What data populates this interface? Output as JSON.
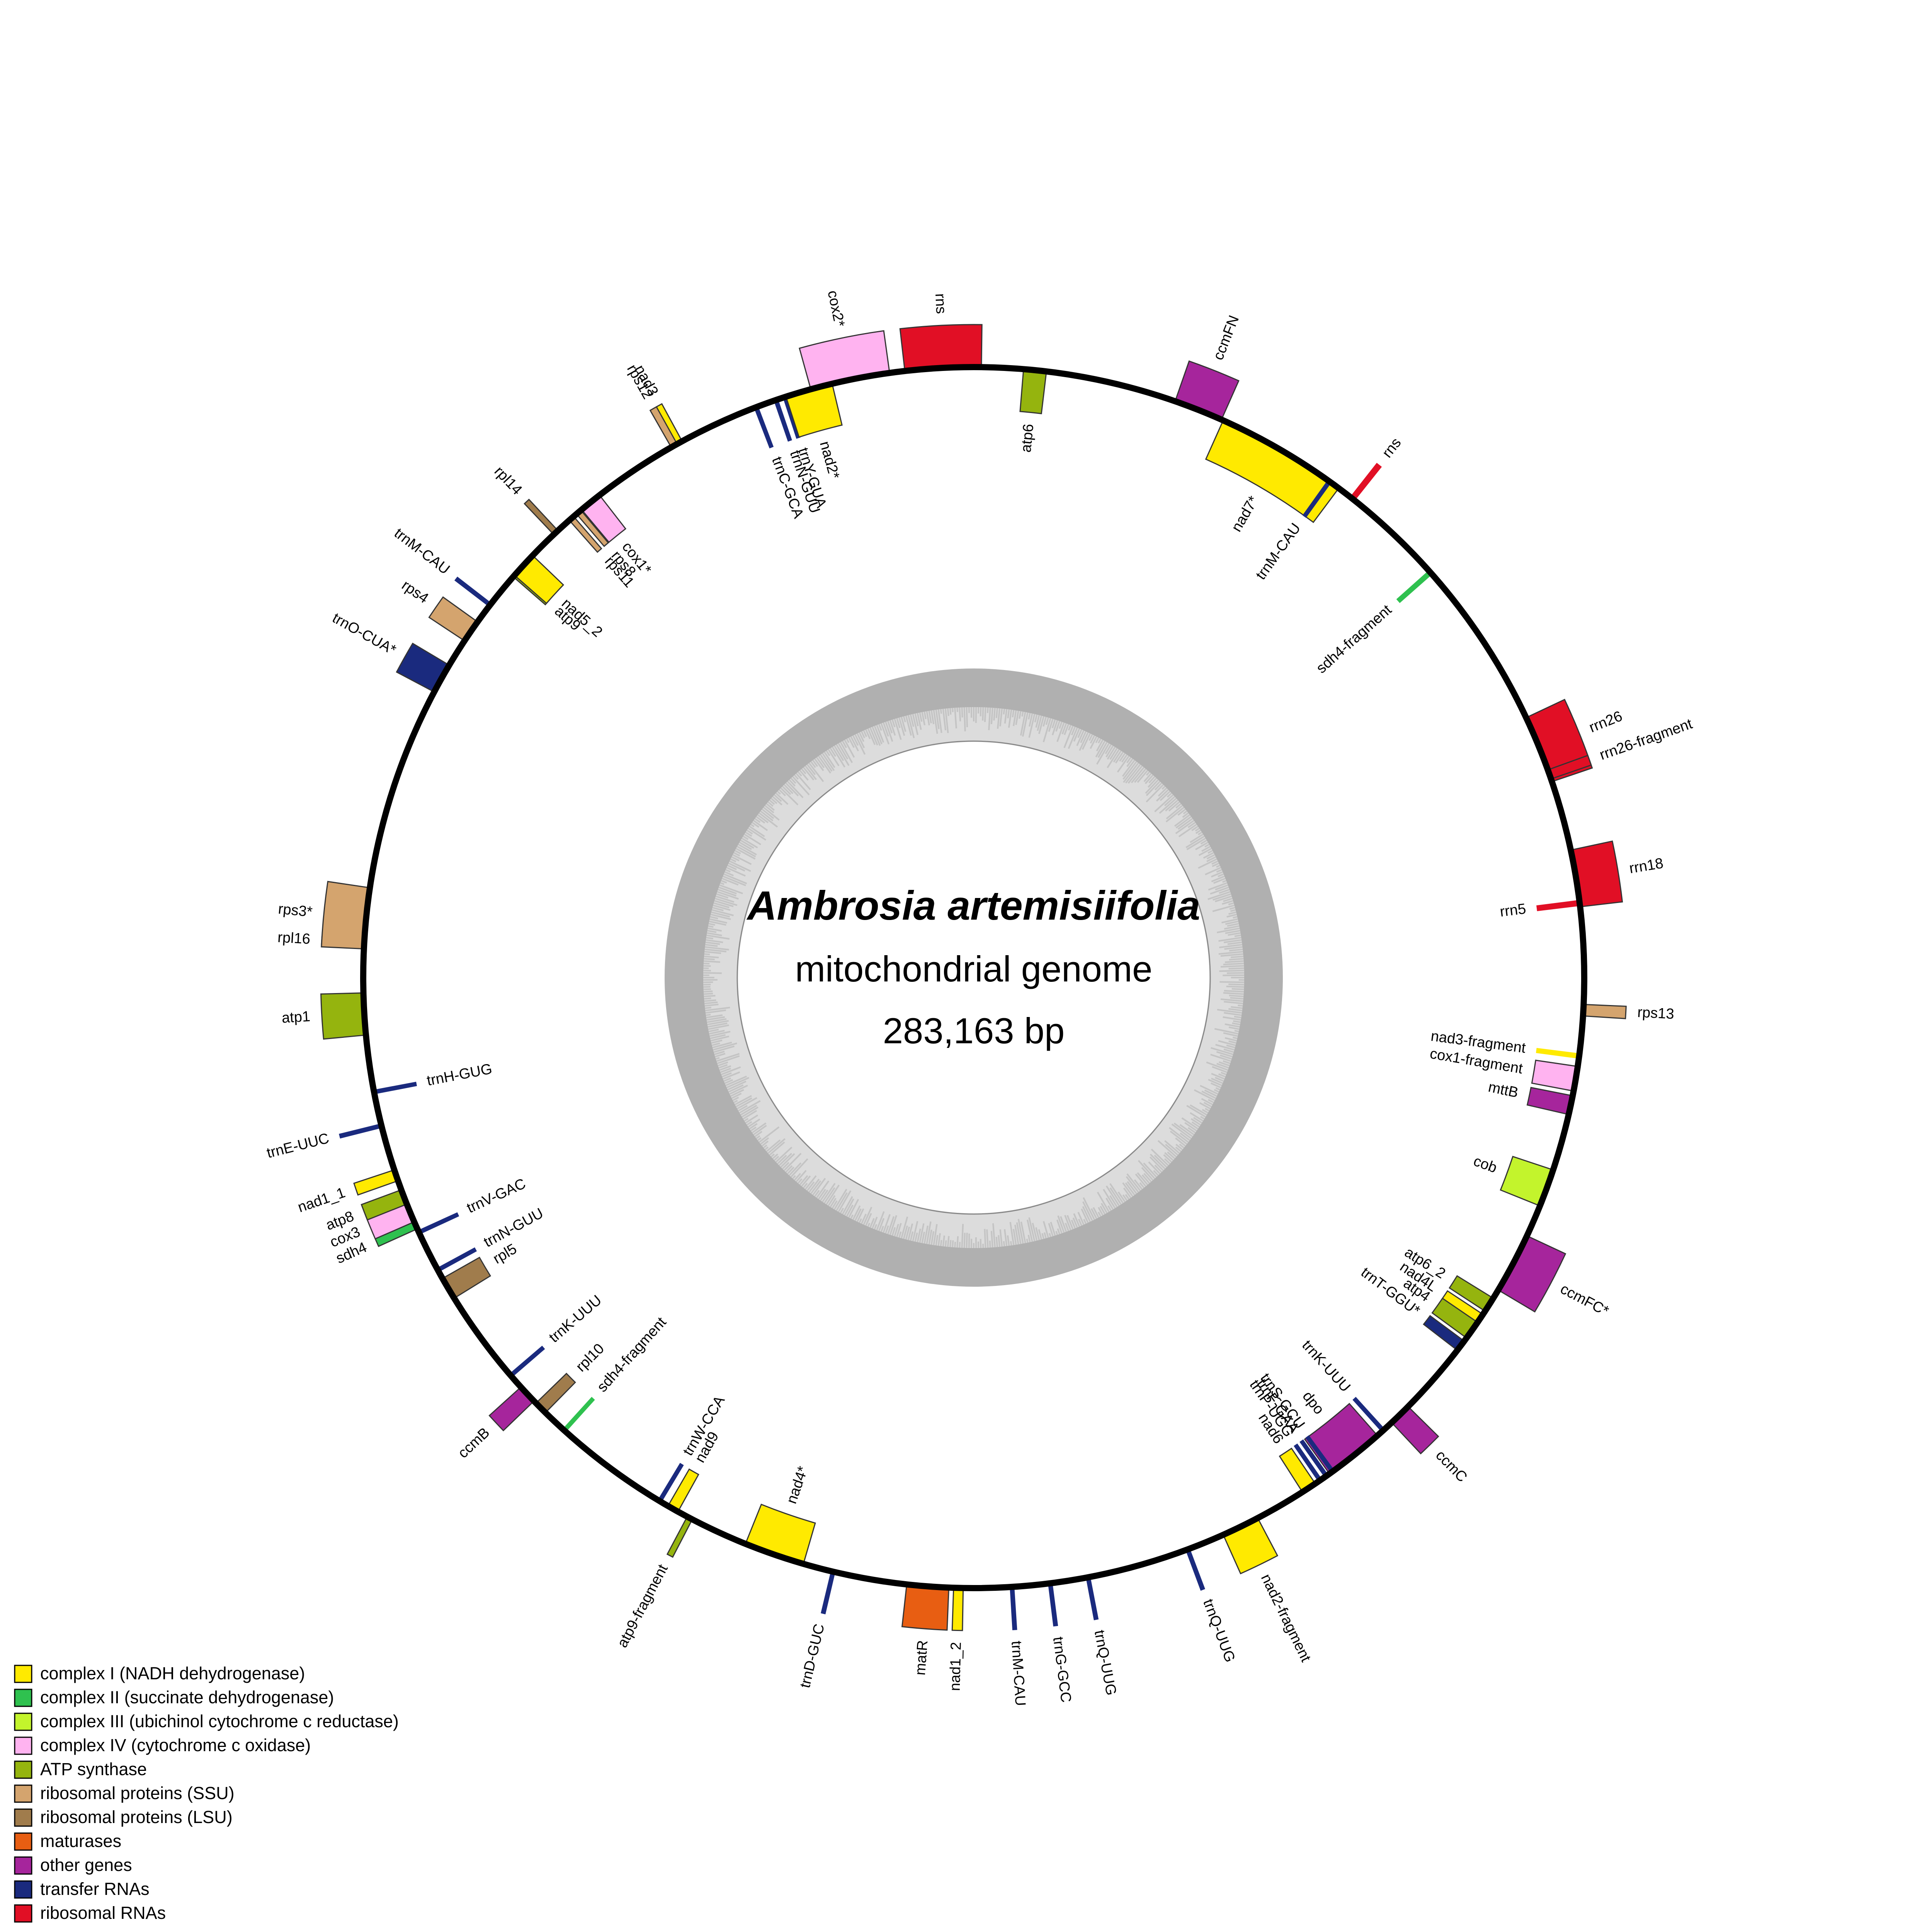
{
  "title": {
    "organism": "Ambrosia artemisiifolia",
    "subtitle": "mitochondrial genome",
    "length": "283,163 bp"
  },
  "genome_length_bp": 283163,
  "categories": [
    {
      "key": "c1",
      "label": "complex I (NADH dehydrogenase)",
      "color": "#FFEA00"
    },
    {
      "key": "c2",
      "label": "complex II (succinate dehydrogenase)",
      "color": "#2FC14F"
    },
    {
      "key": "c3",
      "label": "complex III (ubichinol cytochrome c reductase)",
      "color": "#C3F42C"
    },
    {
      "key": "c4",
      "label": "complex IV (cytochrome c oxidase)",
      "color": "#FFB3F0"
    },
    {
      "key": "atp",
      "label": "ATP synthase",
      "color": "#95B40E"
    },
    {
      "key": "ssu",
      "label": "ribosomal proteins (SSU)",
      "color": "#D4A46E"
    },
    {
      "key": "lsu",
      "label": "ribosomal proteins (LSU)",
      "color": "#A07C4C"
    },
    {
      "key": "mat",
      "label": "maturases",
      "color": "#E85E12"
    },
    {
      "key": "oth",
      "label": "other genes",
      "color": "#A6259C"
    },
    {
      "key": "trna",
      "label": "transfer RNAs",
      "color": "#1A2A7E"
    },
    {
      "key": "rrna",
      "label": "ribosomal RNAs",
      "color": "#E10F25"
    }
  ],
  "genes": [
    {
      "name": "cox2*",
      "cat": "c4",
      "pos": 0.9675,
      "len": 0.021,
      "strand": "out"
    },
    {
      "name": "rns",
      "cat": "rrna",
      "pos": 0.992,
      "len": 0.02,
      "strand": "out"
    },
    {
      "name": "atp6",
      "cat": "atp",
      "pos": 0.016,
      "len": 0.006,
      "strand": "in"
    },
    {
      "name": "ccmFN",
      "cat": "oth",
      "pos": 0.06,
      "len": 0.013,
      "strand": "out"
    },
    {
      "name": "nad7*",
      "cat": "c1",
      "pos": 0.0845,
      "len": 0.035,
      "strand": "in"
    },
    {
      "name": "rns",
      "cat": "rrna",
      "pos": 0.1065,
      "len": 0.0012,
      "strand": "out"
    },
    {
      "name": "trnM-CAU",
      "cat": "trna",
      "pos": 0.099,
      "len": 0.0008,
      "strand": "in"
    },
    {
      "name": "sdh4-fragment",
      "cat": "c2",
      "pos": 0.1345,
      "len": 0.001,
      "strand": "in"
    },
    {
      "name": "rrn26",
      "cat": "rrna",
      "pos": 0.189,
      "len": 0.018,
      "strand": "out"
    },
    {
      "name": "rrn26-fragment",
      "cat": "rrna",
      "pos": 0.196,
      "len": 0.0025,
      "strand": "out"
    },
    {
      "name": "rrn18",
      "cat": "rrna",
      "pos": 0.224,
      "len": 0.015,
      "strand": "out"
    },
    {
      "name": "rrn5",
      "cat": "rrna",
      "pos": 0.2305,
      "len": 0.0012,
      "strand": "in"
    },
    {
      "name": "rps13",
      "cat": "ssu",
      "pos": 0.2585,
      "len": 0.003,
      "strand": "out"
    },
    {
      "name": "nad3-fragment",
      "cat": "c1",
      "pos": 0.2705,
      "len": 0.001,
      "strand": "in"
    },
    {
      "name": "cox1-fragment",
      "cat": "c4",
      "pos": 0.2765,
      "len": 0.0065,
      "strand": "in"
    },
    {
      "name": "mttB",
      "cat": "oth",
      "pos": 0.2835,
      "len": 0.005,
      "strand": "in"
    },
    {
      "name": "cob",
      "cat": "c3",
      "pos": 0.306,
      "len": 0.01,
      "strand": "in"
    },
    {
      "name": "ccmFC*",
      "cat": "oth",
      "pos": 0.3275,
      "len": 0.016,
      "strand": "out"
    },
    {
      "name": "atp6_2",
      "cat": "atp",
      "pos": 0.34,
      "len": 0.004,
      "strand": "in"
    },
    {
      "name": "nad4L",
      "cat": "c1",
      "pos": 0.3445,
      "len": 0.003,
      "strand": "in"
    },
    {
      "name": "atp4",
      "cat": "atp",
      "pos": 0.348,
      "len": 0.005,
      "strand": "in"
    },
    {
      "name": "trnT-GGU*",
      "cat": "trna",
      "pos": 0.353,
      "len": 0.003,
      "strand": "in"
    },
    {
      "name": "ccmC",
      "cat": "oth",
      "pos": 0.377,
      "len": 0.006,
      "strand": "out"
    },
    {
      "name": "trnK-UUU",
      "cat": "trna",
      "pos": 0.383,
      "len": 0.0008,
      "strand": "in"
    },
    {
      "name": "dpo",
      "cat": "oth",
      "pos": 0.393,
      "len": 0.016,
      "strand": "in"
    },
    {
      "name": "trnS-GCU",
      "cat": "trna",
      "pos": 0.4,
      "len": 0.0008,
      "strand": "in"
    },
    {
      "name": "trnF-GAA",
      "cat": "trna",
      "pos": 0.402,
      "len": 0.0008,
      "strand": "in"
    },
    {
      "name": "trnP-UGG",
      "cat": "trna",
      "pos": 0.404,
      "len": 0.0008,
      "strand": "in"
    },
    {
      "name": "nad6",
      "cat": "c1",
      "pos": 0.4075,
      "len": 0.004,
      "strand": "in"
    },
    {
      "name": "nad2-fragment",
      "cat": "c1",
      "pos": 0.428,
      "len": 0.01,
      "strand": "out"
    },
    {
      "name": "trnQ-UUG",
      "cat": "trna",
      "pos": 0.443,
      "len": 0.0008,
      "strand": "out"
    },
    {
      "name": "trnQ-UUG",
      "cat": "trna",
      "pos": 0.47,
      "len": 0.0008,
      "strand": "out"
    },
    {
      "name": "trnG-GCC",
      "cat": "trna",
      "pos": 0.48,
      "len": 0.0008,
      "strand": "out"
    },
    {
      "name": "trnM-CAU",
      "cat": "trna",
      "pos": 0.49,
      "len": 0.0008,
      "strand": "out"
    },
    {
      "name": "nad1_2",
      "cat": "c1",
      "pos": 0.504,
      "len": 0.0025,
      "strand": "out"
    },
    {
      "name": "matR",
      "cat": "mat",
      "pos": 0.512,
      "len": 0.011,
      "strand": "out"
    },
    {
      "name": "trnD-GUC",
      "cat": "trna",
      "pos": 0.537,
      "len": 0.0008,
      "strand": "out"
    },
    {
      "name": "nad4*",
      "cat": "c1",
      "pos": 0.553,
      "len": 0.016,
      "strand": "in"
    },
    {
      "name": "atp9-fragment",
      "cat": "atp",
      "pos": 0.577,
      "len": 0.0015,
      "strand": "out"
    },
    {
      "name": "nad9",
      "cat": "c1",
      "pos": 0.582,
      "len": 0.003,
      "strand": "in"
    },
    {
      "name": "trnW-CCA",
      "cat": "trna",
      "pos": 0.586,
      "len": 0.0008,
      "strand": "in"
    },
    {
      "name": "sdh4-fragment",
      "cat": "c2",
      "pos": 0.617,
      "len": 0.0008,
      "strand": "in"
    },
    {
      "name": "rpl10",
      "cat": "lsu",
      "pos": 0.6255,
      "len": 0.0035,
      "strand": "in"
    },
    {
      "name": "ccmB",
      "cat": "oth",
      "pos": 0.6305,
      "len": 0.005,
      "strand": "out"
    },
    {
      "name": "trnK-UUU",
      "cat": "trna",
      "pos": 0.637,
      "len": 0.0008,
      "strand": "in"
    },
    {
      "name": "rpl5",
      "cat": "lsu",
      "pos": 0.665,
      "len": 0.006,
      "strand": "in"
    },
    {
      "name": "trnN-GUU",
      "cat": "trna",
      "pos": 0.6705,
      "len": 0.0008,
      "strand": "in"
    },
    {
      "name": "trnV-GAC",
      "cat": "trna",
      "pos": 0.6815,
      "len": 0.0008,
      "strand": "in"
    },
    {
      "name": "sdh4",
      "cat": "c2",
      "pos": 0.6835,
      "len": 0.002,
      "strand": "out"
    },
    {
      "name": "cox3",
      "cat": "c4",
      "pos": 0.6875,
      "len": 0.006,
      "strand": "out"
    },
    {
      "name": "atp8",
      "cat": "atp",
      "pos": 0.6915,
      "len": 0.004,
      "strand": "out"
    },
    {
      "name": "nad1_1",
      "cat": "c1",
      "pos": 0.6975,
      "len": 0.003,
      "strand": "out"
    },
    {
      "name": "trnE-UUC",
      "cat": "trna",
      "pos": 0.711,
      "len": 0.0008,
      "strand": "out"
    },
    {
      "name": "trnH-GUG",
      "cat": "trna",
      "pos": 0.72,
      "len": 0.0008,
      "strand": "in"
    },
    {
      "name": "atp1",
      "cat": "atp",
      "pos": 0.7405,
      "len": 0.011,
      "strand": "out"
    },
    {
      "name": "rpl16",
      "cat": "lsu",
      "pos": 0.759,
      "len": 0.002,
      "strand": "out"
    },
    {
      "name": "rps3*",
      "cat": "ssu",
      "pos": 0.7655,
      "len": 0.016,
      "strand": "out"
    },
    {
      "name": "trnO-CUA*",
      "cat": "trna",
      "pos": 0.8315,
      "len": 0.008,
      "strand": "out"
    },
    {
      "name": "rps4",
      "cat": "ssu",
      "pos": 0.846,
      "len": 0.006,
      "strand": "out"
    },
    {
      "name": "trnM-CAU",
      "cat": "trna",
      "pos": 0.8545,
      "len": 0.0008,
      "strand": "out"
    },
    {
      "name": "atp9",
      "cat": "atp",
      "pos": 0.865,
      "len": 0.002,
      "strand": "in"
    },
    {
      "name": "nad5_2",
      "cat": "c1",
      "pos": 0.868,
      "len": 0.007,
      "strand": "in"
    },
    {
      "name": "rpl14",
      "cat": "lsu",
      "pos": 0.88,
      "len": 0.0015,
      "strand": "out"
    },
    {
      "name": "rps11",
      "cat": "ssu",
      "pos": 0.8855,
      "len": 0.0015,
      "strand": "in"
    },
    {
      "name": "rps8",
      "cat": "ssu",
      "pos": 0.888,
      "len": 0.0015,
      "strand": "in"
    },
    {
      "name": "cox1*",
      "cat": "c4",
      "pos": 0.892,
      "len": 0.006,
      "strand": "in"
    },
    {
      "name": "rps12",
      "cat": "ssu",
      "pos": 0.9185,
      "len": 0.002,
      "strand": "out"
    },
    {
      "name": "nad3",
      "cat": "c1",
      "pos": 0.92,
      "len": 0.0015,
      "strand": "out"
    },
    {
      "name": "trnC-GCA",
      "cat": "trna",
      "pos": 0.942,
      "len": 0.0008,
      "strand": "in"
    },
    {
      "name": "trnN-GUU",
      "cat": "trna",
      "pos": 0.9475,
      "len": 0.0008,
      "strand": "in"
    },
    {
      "name": "trnY-GUA",
      "cat": "trna",
      "pos": 0.95,
      "len": 0.0008,
      "strand": "in"
    },
    {
      "name": "nad2*",
      "cat": "c1",
      "pos": 0.9565,
      "len": 0.0125,
      "strand": "in"
    }
  ]
}
